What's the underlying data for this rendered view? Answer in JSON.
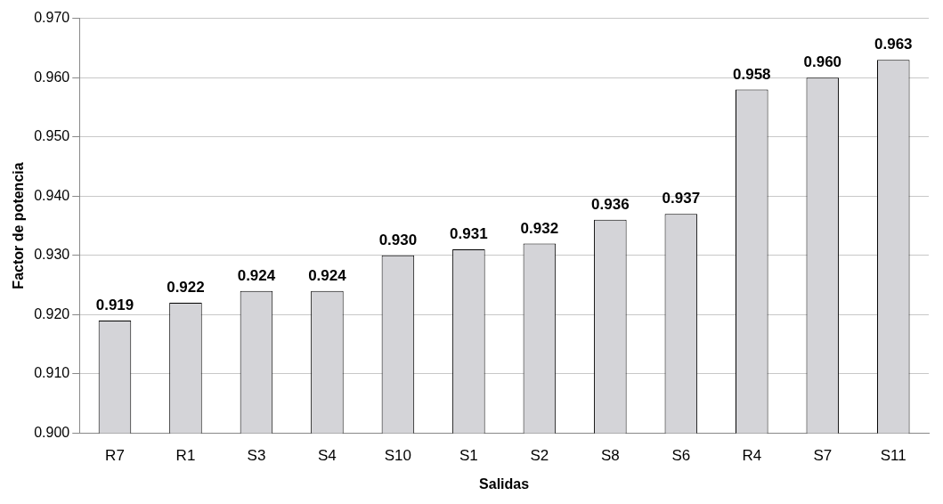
{
  "chart_data": {
    "type": "bar",
    "xlabel": "Salidas",
    "ylabel": "Factor de potencia",
    "categories": [
      "R7",
      "R1",
      "S3",
      "S4",
      "S10",
      "S1",
      "S2",
      "S8",
      "S6",
      "R4",
      "S7",
      "S11"
    ],
    "values": [
      0.919,
      0.922,
      0.924,
      0.924,
      0.93,
      0.931,
      0.932,
      0.936,
      0.937,
      0.958,
      0.96,
      0.963
    ],
    "value_labels": [
      "0.919",
      "0.922",
      "0.924",
      "0.924",
      "0.930",
      "0.931",
      "0.932",
      "0.936",
      "0.937",
      "0.958",
      "0.960",
      "0.963"
    ],
    "color": "#d4d4d8",
    "ylim": [
      0.9,
      0.97
    ],
    "yticks": [
      {
        "value": 0.9,
        "label": "0.900"
      },
      {
        "value": 0.91,
        "label": "0.910"
      },
      {
        "value": 0.92,
        "label": "0.920"
      },
      {
        "value": 0.93,
        "label": "0.930"
      },
      {
        "value": 0.94,
        "label": "0.940"
      },
      {
        "value": 0.95,
        "label": "0.950"
      },
      {
        "value": 0.96,
        "label": "0.960"
      },
      {
        "value": 0.97,
        "label": "0.970"
      }
    ],
    "grid": "y",
    "legend": false
  }
}
